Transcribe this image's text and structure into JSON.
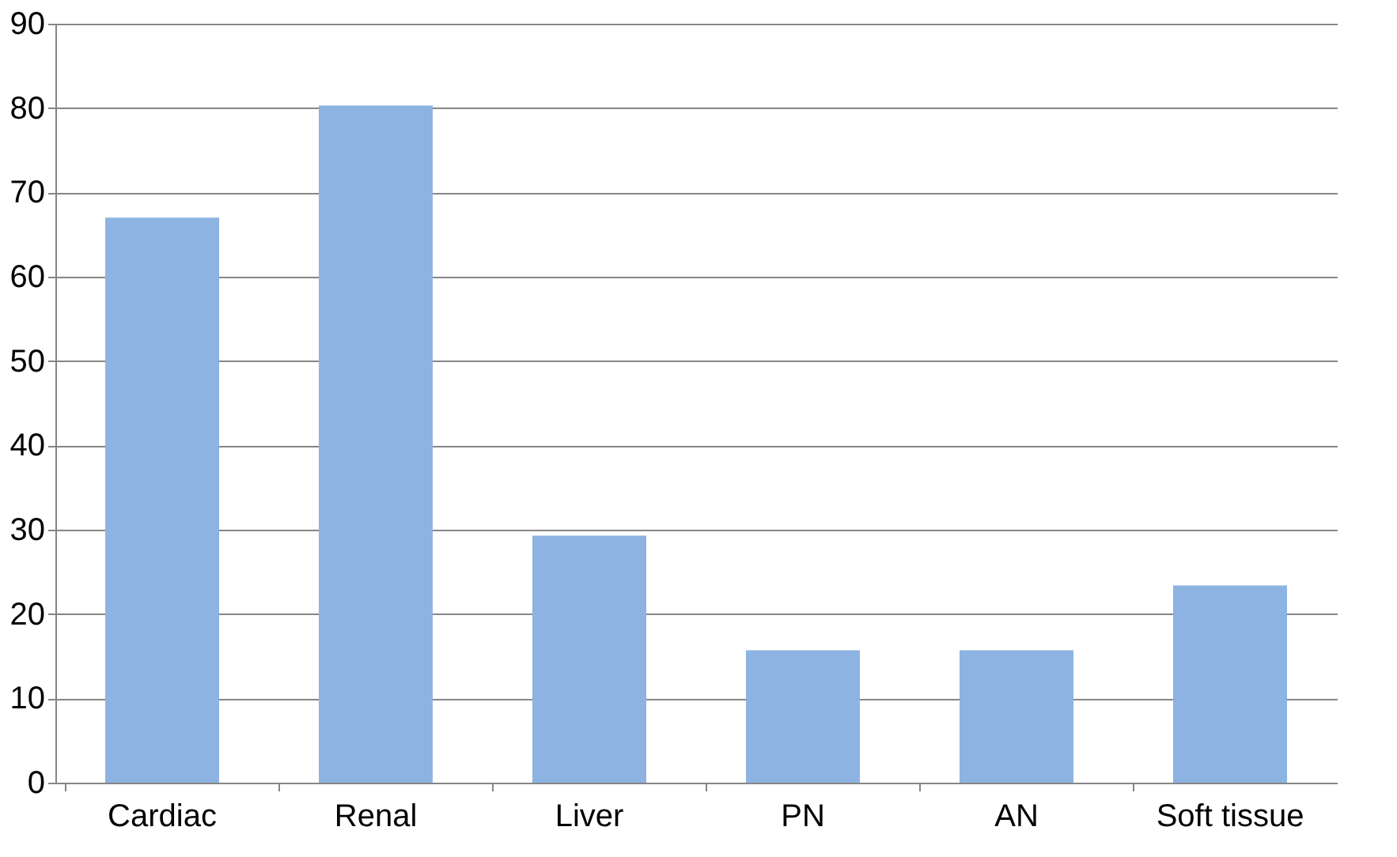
{
  "chart_data": {
    "type": "bar",
    "categories": [
      "Cardiac",
      "Renal",
      "Liver",
      "PN",
      "AN",
      "Soft tissue"
    ],
    "values": [
      67,
      80.3,
      29.3,
      15.7,
      15.7,
      23.4
    ],
    "color": "#8db3e2",
    "ylim": [
      0,
      90
    ],
    "yticks": [
      0,
      10,
      20,
      30,
      40,
      50,
      60,
      70,
      80,
      90
    ],
    "grid": "y"
  }
}
